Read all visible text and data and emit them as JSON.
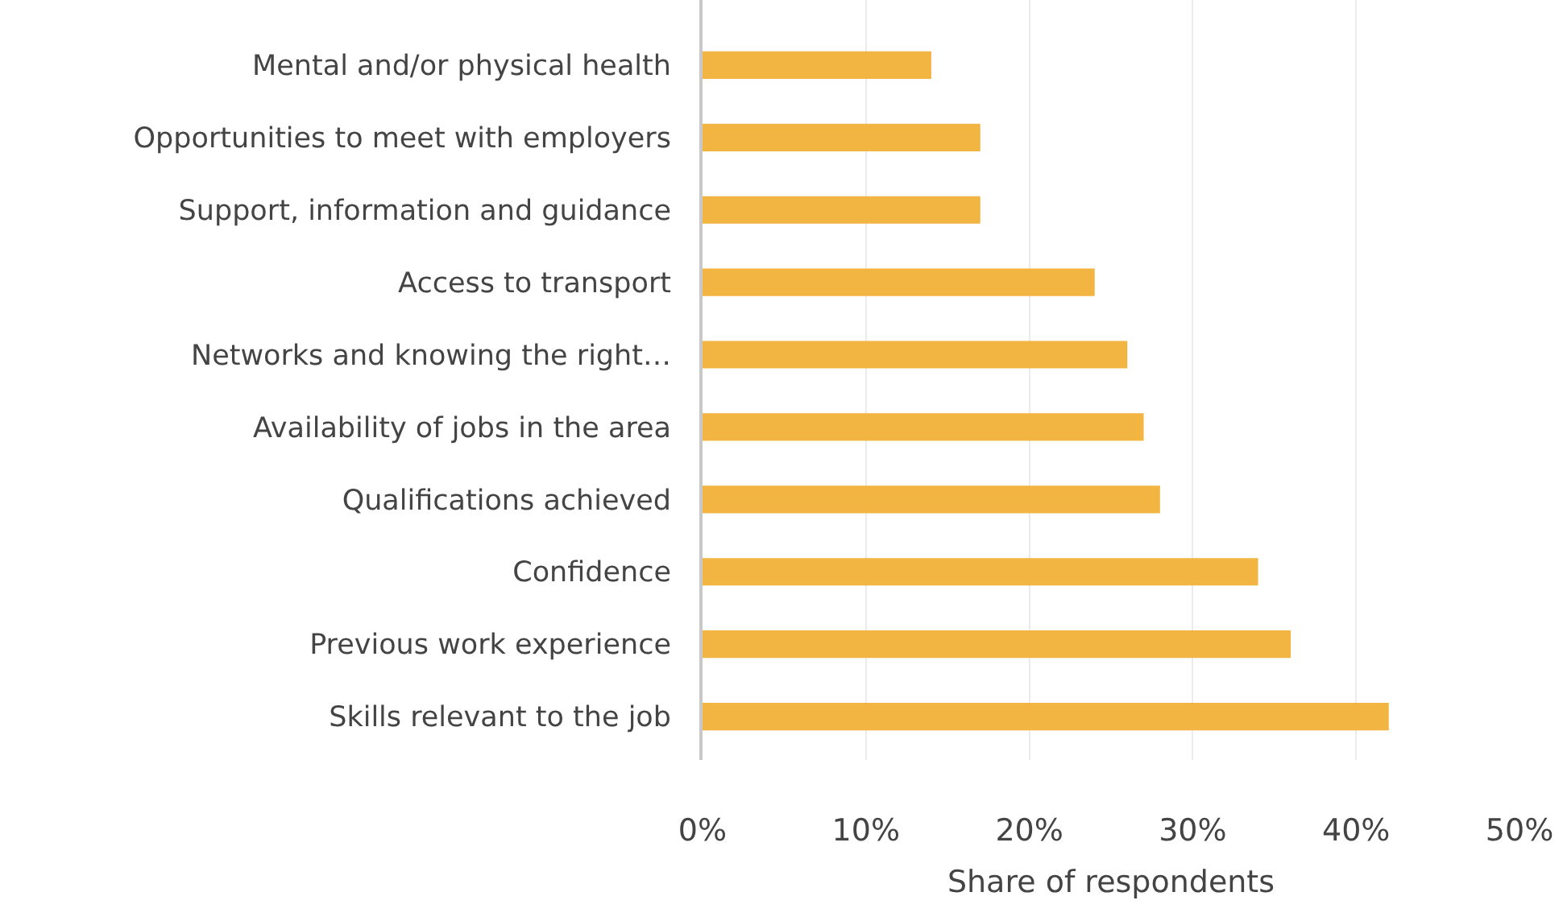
{
  "chart_data": {
    "type": "bar",
    "orientation": "horizontal",
    "xlabel": "Share of respondents",
    "categories": [
      "Mental and/or physical health",
      "Opportunities to meet with employers",
      "Support, information and guidance",
      "Access to transport",
      "Networks and knowing the right…",
      "Availability of jobs in the area",
      "Qualifications achieved",
      "Confidence",
      "Previous work experience",
      "Skills relevant to the job"
    ],
    "values": [
      14,
      17,
      17,
      24,
      26,
      27,
      28,
      34,
      36,
      42
    ],
    "color": "#f2b541",
    "xlim": [
      0,
      50
    ],
    "xticks": [
      {
        "value": 0,
        "label": "0%"
      },
      {
        "value": 10,
        "label": "10%"
      },
      {
        "value": 20,
        "label": "20%"
      },
      {
        "value": 30,
        "label": "30%"
      },
      {
        "value": 40,
        "label": "40%"
      },
      {
        "value": 50,
        "label": "50%"
      }
    ],
    "grid": "x"
  }
}
